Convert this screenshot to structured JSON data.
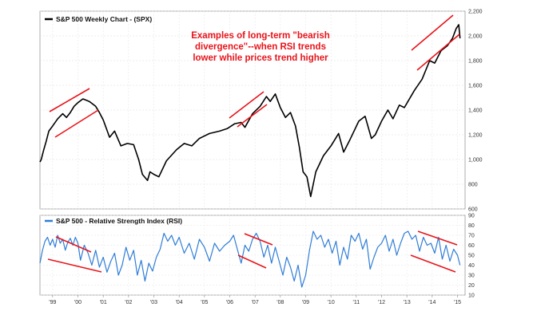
{
  "chart_data": [
    {
      "type": "line",
      "title": "",
      "xlabel": "",
      "ylabel": "",
      "ylim": [
        600,
        2200
      ],
      "ytick_labels": [
        "600",
        "800",
        "1,000",
        "1,200",
        "1,400",
        "1,600",
        "1,800",
        "2,000",
        "2,200"
      ],
      "x_tick_labels": [
        "'99",
        "'00",
        "'01",
        "'02",
        "'03",
        "'04",
        "'05",
        "'06",
        "'07",
        "'08",
        "'09",
        "'10",
        "'11",
        "'12",
        "'13",
        "'14",
        "'15"
      ],
      "grid": true,
      "legend": "top-left",
      "series": [
        {
          "name": "S&P 500 Weekly Chart - (SPX)",
          "color": "#000000",
          "x": [
            1998.5,
            1998.55,
            1998.65,
            1998.75,
            1998.85,
            1999.0,
            1999.2,
            1999.4,
            1999.55,
            1999.7,
            1999.85,
            2000.0,
            2000.2,
            2000.45,
            2000.7,
            2000.85,
            2001.0,
            2001.25,
            2001.45,
            2001.7,
            2001.95,
            2002.2,
            2002.4,
            2002.55,
            2002.75,
            2002.85,
            2003.0,
            2003.2,
            2003.5,
            2003.9,
            2004.2,
            2004.5,
            2004.8,
            2005.2,
            2005.6,
            2005.9,
            2006.2,
            2006.45,
            2006.6,
            2006.9,
            2007.2,
            2007.45,
            2007.6,
            2007.8,
            2008.0,
            2008.2,
            2008.4,
            2008.6,
            2008.75,
            2008.9,
            2009.05,
            2009.2,
            2009.4,
            2009.7,
            2010.0,
            2010.3,
            2010.5,
            2010.75,
            2011.1,
            2011.35,
            2011.6,
            2011.75,
            2012.0,
            2012.25,
            2012.45,
            2012.7,
            2012.9,
            2013.3,
            2013.6,
            2013.9,
            2014.1,
            2014.35,
            2014.6,
            2014.8,
            2014.95,
            2015.05,
            2015.1
          ],
          "y": [
            980,
            1000,
            1080,
            1150,
            1230,
            1270,
            1330,
            1370,
            1340,
            1380,
            1430,
            1460,
            1490,
            1470,
            1430,
            1380,
            1320,
            1180,
            1230,
            1110,
            1130,
            1120,
            1000,
            880,
            830,
            900,
            880,
            860,
            990,
            1080,
            1130,
            1110,
            1170,
            1210,
            1230,
            1250,
            1290,
            1300,
            1260,
            1370,
            1430,
            1510,
            1470,
            1530,
            1420,
            1340,
            1380,
            1270,
            1100,
            900,
            860,
            700,
            900,
            1030,
            1110,
            1210,
            1060,
            1160,
            1310,
            1350,
            1170,
            1200,
            1310,
            1400,
            1330,
            1440,
            1420,
            1560,
            1650,
            1800,
            1780,
            1880,
            1920,
            1980,
            2060,
            2090,
            1980
          ]
        }
      ],
      "annotations": [
        "Examples of long-term \"bearish",
        "divergence\"--when RSI trends",
        "lower while prices trend higher"
      ]
    },
    {
      "type": "line",
      "title": "",
      "xlabel": "",
      "ylabel": "",
      "ylim": [
        10,
        90
      ],
      "ytick_labels": [
        "10",
        "20",
        "30",
        "40",
        "50",
        "60",
        "70",
        "80",
        "90"
      ],
      "grid": true,
      "legend": "top-left",
      "series": [
        {
          "name": "S&P 500 - Relative Strength Index (RSI)",
          "color": "#2f7dd6",
          "x": [
            1998.5,
            1998.6,
            1998.7,
            1998.8,
            1998.9,
            1999.0,
            1999.1,
            1999.2,
            1999.3,
            1999.4,
            1999.5,
            1999.6,
            1999.7,
            1999.8,
            1999.9,
            2000.0,
            2000.1,
            2000.25,
            2000.4,
            2000.55,
            2000.7,
            2000.85,
            2001.0,
            2001.15,
            2001.3,
            2001.45,
            2001.6,
            2001.75,
            2001.9,
            2002.05,
            2002.2,
            2002.35,
            2002.5,
            2002.65,
            2002.8,
            2002.95,
            2003.1,
            2003.25,
            2003.4,
            2003.55,
            2003.7,
            2003.85,
            2004.0,
            2004.2,
            2004.4,
            2004.6,
            2004.8,
            2005.0,
            2005.2,
            2005.4,
            2005.6,
            2005.8,
            2006.0,
            2006.15,
            2006.3,
            2006.45,
            2006.6,
            2006.75,
            2006.9,
            2007.05,
            2007.2,
            2007.35,
            2007.5,
            2007.65,
            2007.8,
            2007.95,
            2008.1,
            2008.25,
            2008.4,
            2008.55,
            2008.7,
            2008.85,
            2009.0,
            2009.15,
            2009.3,
            2009.45,
            2009.6,
            2009.75,
            2009.9,
            2010.05,
            2010.2,
            2010.35,
            2010.5,
            2010.65,
            2010.8,
            2010.95,
            2011.1,
            2011.25,
            2011.4,
            2011.55,
            2011.7,
            2011.85,
            2012.0,
            2012.15,
            2012.3,
            2012.45,
            2012.6,
            2012.75,
            2012.9,
            2013.05,
            2013.2,
            2013.35,
            2013.5,
            2013.65,
            2013.8,
            2013.95,
            2014.1,
            2014.25,
            2014.4,
            2014.55,
            2014.7,
            2014.85,
            2015.0,
            2015.1
          ],
          "y": [
            42,
            55,
            64,
            68,
            60,
            66,
            58,
            70,
            62,
            66,
            55,
            63,
            67,
            60,
            68,
            62,
            45,
            60,
            52,
            40,
            55,
            38,
            48,
            33,
            44,
            52,
            30,
            40,
            58,
            45,
            55,
            30,
            45,
            24,
            42,
            34,
            48,
            56,
            72,
            64,
            70,
            60,
            68,
            52,
            62,
            46,
            66,
            58,
            44,
            62,
            54,
            60,
            64,
            70,
            56,
            42,
            60,
            54,
            66,
            72,
            64,
            48,
            60,
            42,
            58,
            44,
            30,
            48,
            38,
            24,
            40,
            18,
            30,
            55,
            74,
            66,
            70,
            58,
            66,
            52,
            64,
            40,
            58,
            46,
            70,
            64,
            72,
            56,
            66,
            36,
            48,
            58,
            62,
            70,
            54,
            66,
            50,
            62,
            72,
            74,
            66,
            70,
            54,
            68,
            60,
            62,
            52,
            68,
            46,
            60,
            44,
            56,
            50,
            40
          ]
        }
      ]
    }
  ]
}
